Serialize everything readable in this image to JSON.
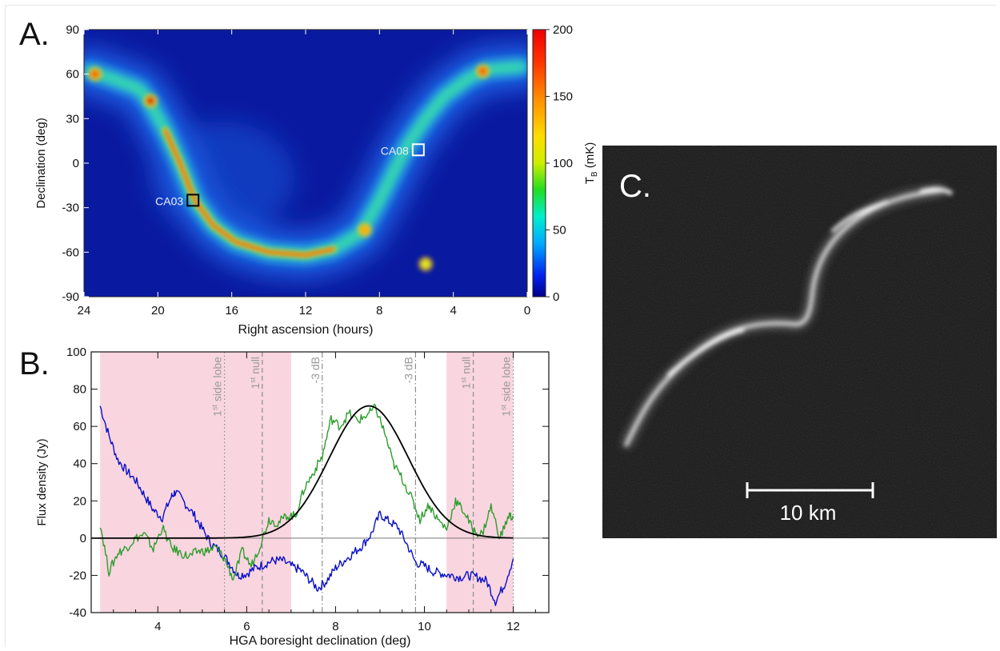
{
  "chart_data": [
    {
      "type": "heatmap",
      "panel_label": "A.",
      "xlabel": "Right ascension (hours)",
      "ylabel": "Declination (deg)",
      "xlim": [
        24,
        0
      ],
      "ylim": [
        -90,
        90
      ],
      "xticks": [
        "24",
        "20",
        "16",
        "12",
        "8",
        "4",
        "0"
      ],
      "yticks": [
        "90",
        "60",
        "30",
        "0",
        "-30",
        "-60",
        "-90"
      ],
      "colorbar": {
        "label_main": "T",
        "label_sub": "B",
        "label_unit": " (mK)",
        "range": [
          0,
          200
        ],
        "ticks": [
          "200",
          "150",
          "100",
          "50",
          "0"
        ]
      },
      "galactic_plane_ridge": [
        {
          "ra": 23.7,
          "dec": 62
        },
        {
          "ra": 22.5,
          "dec": 57
        },
        {
          "ra": 21.0,
          "dec": 50
        },
        {
          "ra": 20.5,
          "dec": 42
        },
        {
          "ra": 19.6,
          "dec": 22
        },
        {
          "ra": 18.8,
          "dec": 0
        },
        {
          "ra": 18.0,
          "dec": -25
        },
        {
          "ra": 17.0,
          "dec": -42
        },
        {
          "ra": 15.8,
          "dec": -53
        },
        {
          "ra": 14.0,
          "dec": -60
        },
        {
          "ra": 12.0,
          "dec": -62
        },
        {
          "ra": 10.5,
          "dec": -58
        },
        {
          "ra": 9.0,
          "dec": -47
        },
        {
          "ra": 8.0,
          "dec": -25
        },
        {
          "ra": 7.2,
          "dec": -5
        },
        {
          "ra": 6.5,
          "dec": 12
        },
        {
          "ra": 5.5,
          "dec": 30
        },
        {
          "ra": 4.5,
          "dec": 45
        },
        {
          "ra": 3.2,
          "dec": 57
        },
        {
          "ra": 2.2,
          "dec": 63
        },
        {
          "ra": 0.3,
          "dec": 65
        }
      ],
      "hot_spots": [
        {
          "ra": 20.4,
          "dec": 42,
          "tb": 190
        },
        {
          "ra": 23.4,
          "dec": 60,
          "tb": 160
        },
        {
          "ra": 2.4,
          "dec": 62,
          "tb": 150
        },
        {
          "ra": 8.8,
          "dec": -45,
          "tb": 120
        },
        {
          "ra": 5.5,
          "dec": -68,
          "tb": 70
        }
      ],
      "annotations": [
        {
          "label": "CA03",
          "ra": 18.1,
          "dec": -25,
          "box_color": "#000000"
        },
        {
          "label": "CA08",
          "ra": 5.9,
          "dec": 9,
          "box_color": "#ffffff"
        }
      ]
    },
    {
      "type": "line",
      "panel_label": "B.",
      "xlabel": "HGA boresight declination (deg)",
      "ylabel": "Flux density (Jy)",
      "xlim": [
        2.5,
        12.8
      ],
      "ylim": [
        -40,
        100
      ],
      "xticks": [
        4,
        6,
        8,
        10,
        12
      ],
      "yticks": [
        100,
        80,
        60,
        40,
        20,
        0,
        -20,
        -40
      ],
      "shaded_regions": [
        [
          2.7,
          7.0
        ],
        [
          10.5,
          12.0
        ]
      ],
      "shade_color": "#f9d5e0",
      "vlines": [
        {
          "x": 5.5,
          "style": "dotted",
          "label": "1",
          "label_sup": "st",
          "label_rest": " side lobe"
        },
        {
          "x": 6.35,
          "style": "dashed",
          "label": "1",
          "label_sup": "st",
          "label_rest": " null"
        },
        {
          "x": 7.7,
          "style": "dashdot",
          "label": "-3 dB",
          "label_sup": "",
          "label_rest": ""
        },
        {
          "x": 9.8,
          "style": "dashdot",
          "label": "-3 dB",
          "label_sup": "",
          "label_rest": ""
        },
        {
          "x": 11.1,
          "style": "dashed",
          "label": "1",
          "label_sup": "st",
          "label_rest": " null"
        },
        {
          "x": 12.0,
          "style": "dotted",
          "label": "1",
          "label_sup": "st",
          "label_rest": " side lobe"
        }
      ],
      "series": [
        {
          "color": "#0a0fc8",
          "x": [
            2.7,
            2.9,
            3.1,
            3.3,
            3.5,
            3.7,
            3.9,
            4.1,
            4.3,
            4.4,
            4.6,
            4.8,
            5.0,
            5.2,
            5.4,
            5.6,
            5.8,
            6.0,
            6.2,
            6.4,
            6.6,
            6.8,
            7.0,
            7.2,
            7.4,
            7.6,
            7.8,
            8.0,
            8.2,
            8.4,
            8.6,
            8.8,
            9.0,
            9.2,
            9.4,
            9.6,
            9.8,
            10.0,
            10.2,
            10.4,
            10.6,
            10.8,
            11.0,
            11.2,
            11.4,
            11.6,
            11.8,
            12.0
          ],
          "y": [
            71,
            55,
            42,
            36,
            31,
            23,
            15,
            11,
            22,
            25,
            19,
            13,
            5,
            -3,
            -7,
            -13,
            -20,
            -19,
            -16,
            -14,
            -12,
            -12,
            -15,
            -17,
            -22,
            -27,
            -23,
            -16,
            -12,
            -8,
            -4,
            2,
            13,
            9,
            6,
            -3,
            -13,
            -15,
            -18,
            -19,
            -20,
            -21,
            -20,
            -21,
            -23,
            -34,
            -25,
            -11
          ]
        },
        {
          "color": "#2c9e2c",
          "x": [
            2.7,
            2.9,
            3.1,
            3.3,
            3.5,
            3.7,
            3.9,
            4.1,
            4.3,
            4.5,
            4.7,
            4.9,
            5.1,
            5.3,
            5.5,
            5.7,
            5.9,
            6.1,
            6.3,
            6.5,
            6.7,
            6.9,
            7.1,
            7.3,
            7.5,
            7.7,
            7.9,
            8.1,
            8.3,
            8.5,
            8.7,
            8.9,
            9.1,
            9.3,
            9.5,
            9.7,
            9.9,
            10.1,
            10.3,
            10.5,
            10.7,
            10.9,
            11.1,
            11.3,
            11.5,
            11.7,
            11.9,
            12.0
          ],
          "y": [
            8,
            -18,
            -8,
            -5,
            0,
            2,
            -6,
            6,
            -5,
            -8,
            -10,
            -7,
            -7,
            -5,
            -11,
            -22,
            -7,
            -15,
            -4,
            10,
            8,
            12,
            12,
            27,
            35,
            44,
            64,
            60,
            67,
            63,
            66,
            70,
            57,
            40,
            32,
            22,
            10,
            18,
            10,
            5,
            20,
            14,
            4,
            2,
            17,
            0,
            12,
            11
          ]
        },
        {
          "color": "#000000",
          "model": "gaussian",
          "center": 8.75,
          "peak": 71,
          "fwhm": 2.1,
          "x_start": 5.0,
          "x_end": 12.0
        }
      ]
    }
  ],
  "panel_c": {
    "label": "C.",
    "scale_bar_label": "10 km",
    "background": "#0e0e0e"
  }
}
